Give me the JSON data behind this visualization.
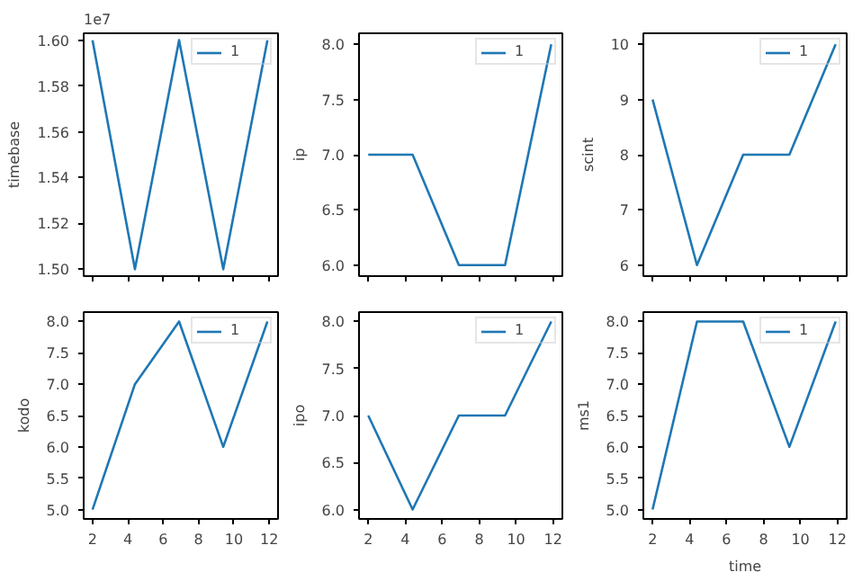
{
  "chart_data": [
    {
      "type": "line",
      "ylabel": "timebase",
      "annotations": [
        "1e7"
      ],
      "x": [
        2,
        4.4,
        6.9,
        9.4,
        11.9
      ],
      "series": [
        {
          "name": "1",
          "color": "#1f77b4",
          "values": [
            1.6,
            1.5,
            1.6,
            1.5,
            1.6
          ]
        }
      ],
      "xlim": [
        1.5,
        12.5
      ],
      "ylim": [
        1.497,
        1.603
      ],
      "xticks": [
        2,
        4,
        6,
        8,
        10,
        12
      ],
      "yticks": [
        {
          "value": 1.5,
          "label": "1.50"
        },
        {
          "value": 1.52,
          "label": "1.52"
        },
        {
          "value": 1.54,
          "label": "1.54"
        },
        {
          "value": 1.56,
          "label": "1.56"
        },
        {
          "value": 1.58,
          "label": "1.58"
        },
        {
          "value": 1.6,
          "label": "1.60"
        }
      ],
      "tick_labels": "y",
      "legend": "top right",
      "grid": false
    },
    {
      "type": "line",
      "ylabel": "ip",
      "x": [
        2,
        4.4,
        6.9,
        9.4,
        11.9
      ],
      "series": [
        {
          "name": "1",
          "color": "#1f77b4",
          "values": [
            7,
            7,
            6,
            6,
            8
          ]
        }
      ],
      "xlim": [
        1.5,
        12.5
      ],
      "ylim": [
        5.9,
        8.1
      ],
      "xticks": [
        2,
        4,
        6,
        8,
        10,
        12
      ],
      "yticks": [
        {
          "value": 6,
          "label": "6.0"
        },
        {
          "value": 6.5,
          "label": "6.5"
        },
        {
          "value": 7,
          "label": "7.0"
        },
        {
          "value": 7.5,
          "label": "7.5"
        },
        {
          "value": 8,
          "label": "8.0"
        }
      ],
      "tick_labels": "y",
      "legend": "top right",
      "grid": false
    },
    {
      "type": "line",
      "ylabel": "scint",
      "x": [
        2,
        4.4,
        6.9,
        9.4,
        11.9
      ],
      "series": [
        {
          "name": "1",
          "color": "#1f77b4",
          "values": [
            9,
            6,
            8,
            8,
            10
          ]
        }
      ],
      "xlim": [
        1.5,
        12.5
      ],
      "ylim": [
        5.8,
        10.2
      ],
      "xticks": [
        2,
        4,
        6,
        8,
        10,
        12
      ],
      "yticks": [
        6,
        7,
        8,
        9,
        10
      ],
      "tick_labels": "y",
      "legend": "top right",
      "grid": false
    },
    {
      "type": "line",
      "ylabel": "kodo",
      "x": [
        2,
        4.4,
        6.9,
        9.4,
        11.9
      ],
      "series": [
        {
          "name": "1",
          "color": "#1f77b4",
          "values": [
            5,
            7,
            8,
            6,
            8
          ]
        }
      ],
      "xlim": [
        1.5,
        12.5
      ],
      "ylim": [
        4.85,
        8.15
      ],
      "xticks": [
        2,
        4,
        6,
        8,
        10,
        12
      ],
      "yticks": [
        {
          "value": 5,
          "label": "5.0"
        },
        {
          "value": 5.5,
          "label": "5.5"
        },
        {
          "value": 6,
          "label": "6.0"
        },
        {
          "value": 6.5,
          "label": "6.5"
        },
        {
          "value": 7,
          "label": "7.0"
        },
        {
          "value": 7.5,
          "label": "7.5"
        },
        {
          "value": 8,
          "label": "8.0"
        }
      ],
      "legend": "top right",
      "grid": false
    },
    {
      "type": "line",
      "ylabel": "ipo",
      "x": [
        2,
        4.4,
        6.9,
        9.4,
        11.9
      ],
      "series": [
        {
          "name": "1",
          "color": "#1f77b4",
          "values": [
            7,
            6,
            7,
            7,
            8
          ]
        }
      ],
      "xlim": [
        1.5,
        12.5
      ],
      "ylim": [
        5.9,
        8.1
      ],
      "xticks": [
        2,
        4,
        6,
        8,
        10,
        12
      ],
      "yticks": [
        {
          "value": 6,
          "label": "6.0"
        },
        {
          "value": 6.5,
          "label": "6.5"
        },
        {
          "value": 7,
          "label": "7.0"
        },
        {
          "value": 7.5,
          "label": "7.5"
        },
        {
          "value": 8,
          "label": "8.0"
        }
      ],
      "legend": "top right",
      "grid": false
    },
    {
      "type": "line",
      "xlabel": "time",
      "ylabel": "ms1",
      "x": [
        2,
        4.4,
        6.9,
        9.4,
        11.9
      ],
      "series": [
        {
          "name": "1",
          "color": "#1f77b4",
          "values": [
            5,
            8,
            8,
            6,
            8
          ]
        }
      ],
      "xlim": [
        1.5,
        12.5
      ],
      "ylim": [
        4.85,
        8.15
      ],
      "xticks": [
        2,
        4,
        6,
        8,
        10,
        12
      ],
      "yticks": [
        {
          "value": 5,
          "label": "5.0"
        },
        {
          "value": 5.5,
          "label": "5.5"
        },
        {
          "value": 6,
          "label": "6.0"
        },
        {
          "value": 6.5,
          "label": "6.5"
        },
        {
          "value": 7,
          "label": "7.0"
        },
        {
          "value": 7.5,
          "label": "7.5"
        },
        {
          "value": 8,
          "label": "8.0"
        }
      ],
      "legend": "top right",
      "grid": false
    }
  ]
}
